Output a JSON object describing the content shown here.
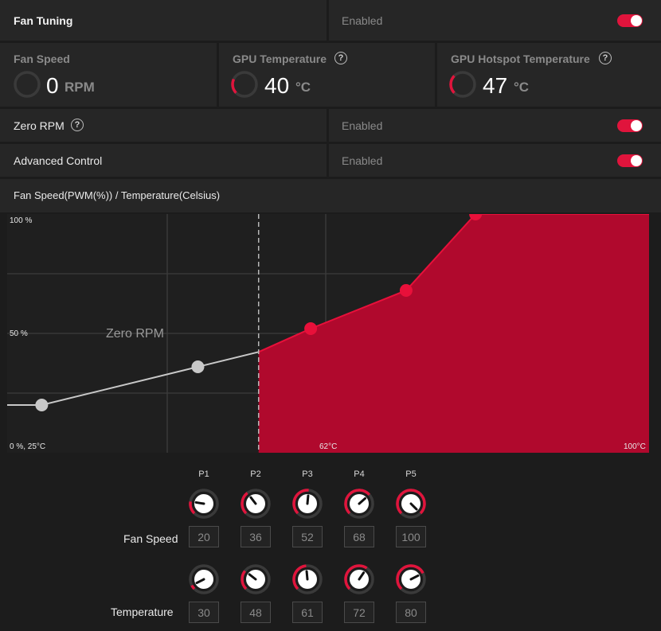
{
  "fan_tuning": {
    "title": "Fan Tuning",
    "status": "Enabled"
  },
  "fan_speed": {
    "label": "Fan Speed",
    "value": "0",
    "unit": "RPM",
    "level": 0
  },
  "gpu_temp": {
    "label": "GPU Temperature",
    "value": "40",
    "unit": "°C",
    "level": 0.25,
    "help": "?"
  },
  "gpu_hotspot": {
    "label": "GPU Hotspot Temperature",
    "value": "47",
    "unit": "°C",
    "level": 0.3,
    "help": "?"
  },
  "zero_rpm": {
    "label": "Zero RPM",
    "status": "Enabled",
    "help": "?"
  },
  "advanced_control": {
    "label": "Advanced Control",
    "status": "Enabled"
  },
  "curve_header": "Fan Speed(PWM(%)) / Temperature(Celsius)",
  "chart_data": {
    "type": "area",
    "x_unit": "°C",
    "y_unit": "%",
    "xlim": [
      25,
      100
    ],
    "ylim": [
      0,
      100
    ],
    "grid": true,
    "y_tick_labels": [
      "100 %",
      "50 %",
      "0 %, 25°C"
    ],
    "x_tick_labels": [
      "62°C",
      "100°C"
    ],
    "annotation": "Zero RPM",
    "zero_rpm_threshold_x": 55,
    "zero_rpm_line_start_y": 20,
    "series": [
      {
        "points": [
          {
            "x": 30,
            "y": 20
          },
          {
            "x": 48,
            "y": 36
          },
          {
            "x": 61,
            "y": 52
          },
          {
            "x": 72,
            "y": 68
          },
          {
            "x": 80,
            "y": 100
          }
        ]
      }
    ],
    "colors": {
      "fill": "#b0092d",
      "point": "#e8103a",
      "inactive": "#c8c8c8"
    }
  },
  "points": {
    "labels": [
      "P1",
      "P2",
      "P3",
      "P4",
      "P5"
    ],
    "fan_speed_label": "Fan Speed",
    "temperature_label": "Temperature",
    "fan_speed": [
      20,
      36,
      52,
      68,
      100
    ],
    "temperature": [
      30,
      48,
      61,
      72,
      80
    ]
  },
  "accent": "#e0143c"
}
